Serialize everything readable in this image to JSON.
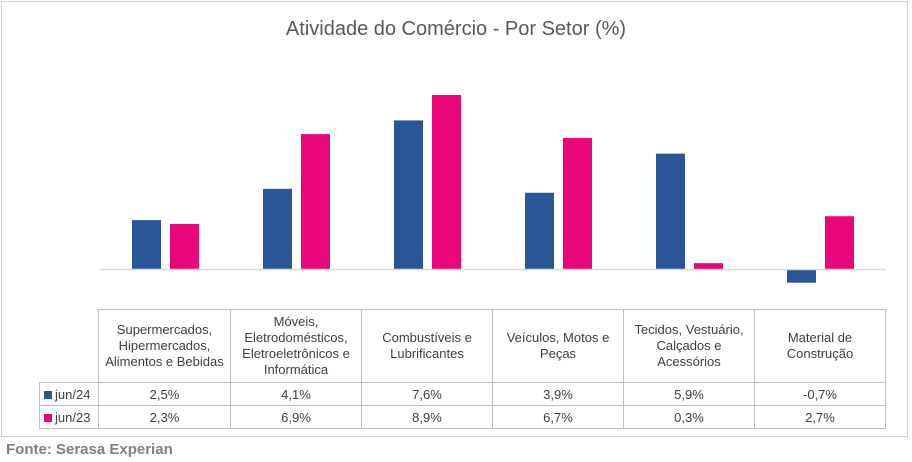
{
  "chart_data": {
    "type": "bar",
    "title": "Atividade do Comércio - Por Setor (%)",
    "categories": [
      [
        "Supermercados,",
        "Hipermercados,",
        "Alimentos e Bebidas"
      ],
      [
        "Móveis,",
        "Eletrodomésticos,",
        "Eletroeletrônicos e",
        "Informática"
      ],
      [
        "Combustíveis e",
        "Lubrificantes"
      ],
      [
        "Veículos, Motos e",
        "Peças"
      ],
      [
        "Tecidos, Vestuário,",
        "Calçados e",
        "Acessórios"
      ],
      [
        "Material de",
        "Construção"
      ]
    ],
    "series": [
      {
        "name": "jun/24",
        "color": "#2a5597",
        "values": [
          2.5,
          4.1,
          7.6,
          3.9,
          5.9,
          -0.7
        ],
        "labels": [
          "2,5%",
          "4,1%",
          "7,6%",
          "3,9%",
          "5,9%",
          "-0,7%"
        ]
      },
      {
        "name": "jun/23",
        "color": "#e8067a",
        "values": [
          2.3,
          6.9,
          8.9,
          6.7,
          0.3,
          2.7
        ],
        "labels": [
          "2,3%",
          "6,9%",
          "8,9%",
          "6,7%",
          "0,3%",
          "2,7%"
        ]
      }
    ],
    "ylim": [
      -1.0,
      9.0
    ],
    "grid": false,
    "legend": "data-table"
  },
  "source": "Fonte: Serasa Experian"
}
